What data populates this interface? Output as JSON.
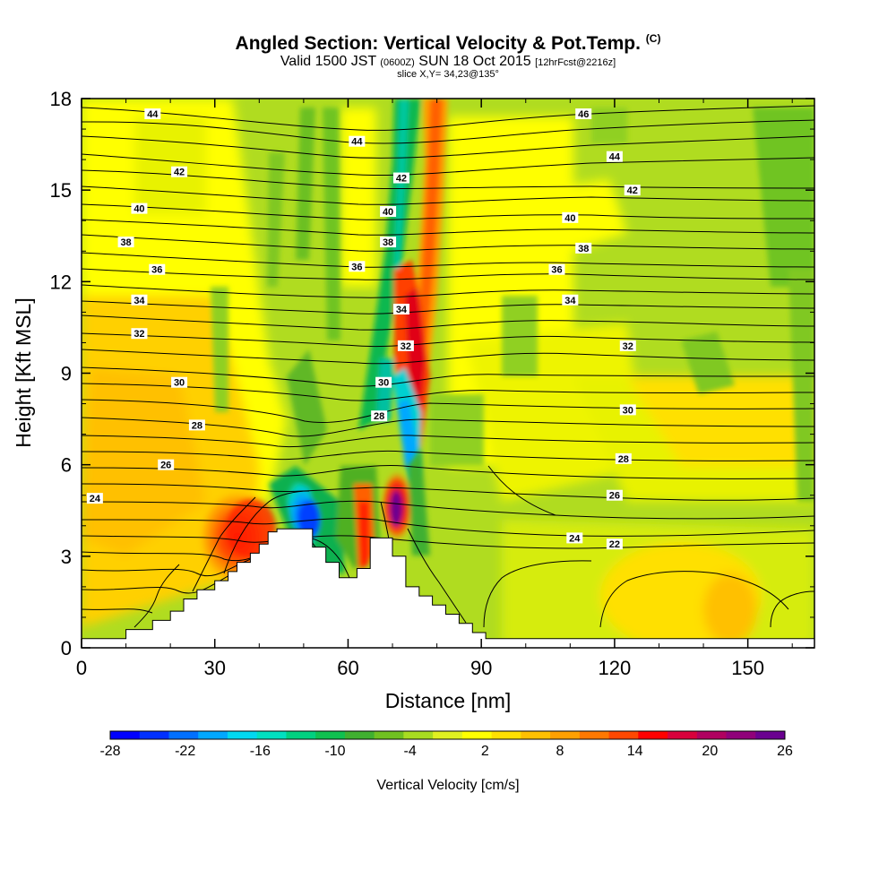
{
  "header": {
    "title": "Angled Section: Vertical Velocity & Pot.Temp.",
    "title_unit": "(C)",
    "valid_prefix": "Valid 1500 JST",
    "valid_utc": "(0600Z)",
    "valid_date": "SUN 18 Oct 2015",
    "forecast": "[12hrFcst@2216z]",
    "slice": "slice X,Y= 34,23@135°"
  },
  "chart_data": {
    "type": "heatmap",
    "xlabel": "Distance [nm]",
    "ylabel": "Height [Kft MSL]",
    "xlim": [
      0,
      165
    ],
    "ylim": [
      0,
      18
    ],
    "x_ticks": [
      0,
      30,
      60,
      90,
      120,
      150
    ],
    "y_ticks": [
      0,
      3,
      6,
      9,
      12,
      15,
      18
    ],
    "colorbar": {
      "title": "Vertical Velocity [cm/s]",
      "range": [
        -28,
        26
      ],
      "tick_labels": [
        -28,
        -22,
        -16,
        -10,
        -4,
        2,
        8,
        14,
        20,
        26
      ],
      "colors": [
        "#0000ff",
        "#0030ff",
        "#0070ff",
        "#00a8ff",
        "#00d8f0",
        "#00e0c0",
        "#00d080",
        "#10c050",
        "#40b030",
        "#70c020",
        "#a8dc20",
        "#e0f020",
        "#ffff00",
        "#ffe000",
        "#ffc000",
        "#ffa000",
        "#ff7800",
        "#ff4800",
        "#ff0000",
        "#d8003c",
        "#b00060",
        "#90007a",
        "#6a0090"
      ]
    },
    "terrain_steps": [
      [
        0,
        0.3
      ],
      [
        10,
        0.3
      ],
      [
        10,
        0.6
      ],
      [
        16,
        0.6
      ],
      [
        16,
        0.9
      ],
      [
        20,
        0.9
      ],
      [
        20,
        1.2
      ],
      [
        23,
        1.2
      ],
      [
        23,
        1.6
      ],
      [
        26,
        1.6
      ],
      [
        26,
        1.9
      ],
      [
        30,
        1.9
      ],
      [
        30,
        2.2
      ],
      [
        33,
        2.2
      ],
      [
        33,
        2.5
      ],
      [
        35,
        2.5
      ],
      [
        35,
        2.8
      ],
      [
        38,
        2.8
      ],
      [
        38,
        3.1
      ],
      [
        40,
        3.1
      ],
      [
        40,
        3.4
      ],
      [
        42,
        3.4
      ],
      [
        42,
        3.8
      ],
      [
        44,
        3.8
      ],
      [
        44,
        3.9
      ],
      [
        52,
        3.9
      ],
      [
        52,
        3.3
      ],
      [
        55,
        3.3
      ],
      [
        55,
        2.8
      ],
      [
        58,
        2.8
      ],
      [
        58,
        2.3
      ],
      [
        62,
        2.3
      ],
      [
        62,
        2.6
      ],
      [
        65,
        2.6
      ],
      [
        65,
        3.6
      ],
      [
        70,
        3.6
      ],
      [
        70,
        3.0
      ],
      [
        73,
        3.0
      ],
      [
        73,
        2.0
      ],
      [
        76,
        2.0
      ],
      [
        76,
        1.7
      ],
      [
        79,
        1.7
      ],
      [
        79,
        1.4
      ],
      [
        82,
        1.4
      ],
      [
        82,
        1.1
      ],
      [
        85,
        1.1
      ],
      [
        85,
        0.8
      ],
      [
        88,
        0.8
      ],
      [
        88,
        0.5
      ],
      [
        91,
        0.5
      ],
      [
        91,
        0.3
      ],
      [
        165,
        0.3
      ]
    ],
    "isentropes": [
      {
        "value": "22",
        "label_x": 120,
        "label_y": 3.4
      },
      {
        "value": "24",
        "label_x": 3,
        "label_y": 4.9
      },
      {
        "value": "24",
        "label_x": 111,
        "label_y": 3.6
      },
      {
        "value": "26",
        "label_x": 19,
        "label_y": 6.0
      },
      {
        "value": "26",
        "label_x": 120,
        "label_y": 5.0
      },
      {
        "value": "28",
        "label_x": 26,
        "label_y": 7.3
      },
      {
        "value": "28",
        "label_x": 67,
        "label_y": 7.6
      },
      {
        "value": "28",
        "label_x": 122,
        "label_y": 6.2
      },
      {
        "value": "30",
        "label_x": 22,
        "label_y": 8.7
      },
      {
        "value": "30",
        "label_x": 68,
        "label_y": 8.7
      },
      {
        "value": "30",
        "label_x": 123,
        "label_y": 7.8
      },
      {
        "value": "32",
        "label_x": 13,
        "label_y": 10.3
      },
      {
        "value": "32",
        "label_x": 73,
        "label_y": 9.9
      },
      {
        "value": "32",
        "label_x": 123,
        "label_y": 9.9
      },
      {
        "value": "34",
        "label_x": 13,
        "label_y": 11.4
      },
      {
        "value": "34",
        "label_x": 72,
        "label_y": 11.1
      },
      {
        "value": "34",
        "label_x": 110,
        "label_y": 11.4
      },
      {
        "value": "36",
        "label_x": 17,
        "label_y": 12.4
      },
      {
        "value": "36",
        "label_x": 62,
        "label_y": 12.5
      },
      {
        "value": "36",
        "label_x": 107,
        "label_y": 12.4
      },
      {
        "value": "38",
        "label_x": 10,
        "label_y": 13.3
      },
      {
        "value": "38",
        "label_x": 69,
        "label_y": 13.3
      },
      {
        "value": "38",
        "label_x": 113,
        "label_y": 13.1
      },
      {
        "value": "40",
        "label_x": 13,
        "label_y": 14.4
      },
      {
        "value": "40",
        "label_x": 69,
        "label_y": 14.3
      },
      {
        "value": "40",
        "label_x": 110,
        "label_y": 14.1
      },
      {
        "value": "42",
        "label_x": 22,
        "label_y": 15.6
      },
      {
        "value": "42",
        "label_x": 72,
        "label_y": 15.4
      },
      {
        "value": "42",
        "label_x": 124,
        "label_y": 15.0
      },
      {
        "value": "44",
        "label_x": 16,
        "label_y": 17.5
      },
      {
        "value": "44",
        "label_x": 62,
        "label_y": 16.6
      },
      {
        "value": "44",
        "label_x": 120,
        "label_y": 16.1
      },
      {
        "value": "46",
        "label_x": 113,
        "label_y": 17.5
      }
    ]
  }
}
